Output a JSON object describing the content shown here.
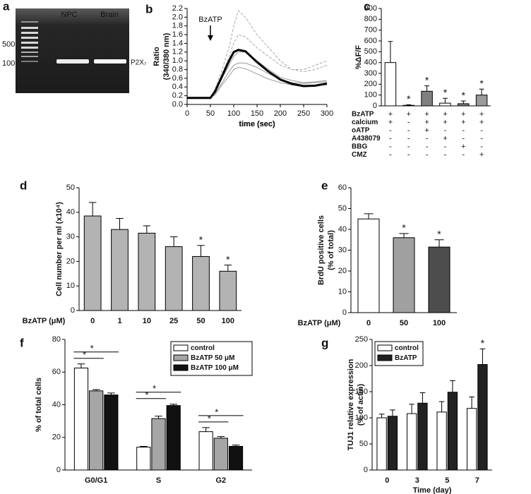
{
  "gel": {
    "panel": "a",
    "lanes": [
      "NPC",
      "Brain"
    ],
    "markers": [
      "500",
      "100"
    ],
    "band": "P2X₇"
  },
  "chart_data": [
    {
      "type": "line",
      "panel": "b",
      "ylabel": [
        "Ratio",
        "(340/380 nm)"
      ],
      "xlabel": "time (sec)",
      "x": [
        0,
        25,
        50,
        60,
        75,
        90,
        100,
        110,
        125,
        150,
        175,
        200,
        225,
        250,
        275,
        300
      ],
      "xlim": [
        0,
        300
      ],
      "xticks": [
        0,
        50,
        100,
        150,
        200,
        250,
        300
      ],
      "ylim": [
        0,
        2.2
      ],
      "yticks": [
        {
          "value": 0,
          "label": "0.0"
        },
        0.2,
        0.4,
        0.6,
        0.8,
        {
          "value": 1,
          "label": "1.0"
        },
        1.2,
        1.4,
        1.6,
        1.8,
        {
          "value": 2,
          "label": "2.0"
        },
        2.2
      ],
      "annotation": {
        "text": "BzATP",
        "x": 50
      },
      "series": [
        {
          "color": "#aaaaaa",
          "width": 1,
          "dash": true,
          "values": [
            0.15,
            0.15,
            0.15,
            0.35,
            0.8,
            1.3,
            1.8,
            2.15,
            2.0,
            1.6,
            1.3,
            1.0,
            0.8,
            0.75,
            0.8,
            0.9
          ]
        },
        {
          "color": "#aaaaaa",
          "width": 1,
          "dash": true,
          "values": [
            0.15,
            0.15,
            0.15,
            0.3,
            0.7,
            1.1,
            1.4,
            1.6,
            1.55,
            1.3,
            1.1,
            0.9,
            0.8,
            0.8,
            0.9,
            1.0
          ]
        },
        {
          "color": "#999999",
          "width": 1,
          "dash": false,
          "values": [
            0.15,
            0.15,
            0.15,
            0.28,
            0.6,
            0.9,
            1.1,
            1.2,
            1.2,
            1.0,
            0.8,
            0.62,
            0.55,
            0.5,
            0.52,
            0.55
          ]
        },
        {
          "color": "#999999",
          "width": 1,
          "dash": false,
          "values": [
            0.15,
            0.15,
            0.15,
            0.25,
            0.5,
            0.75,
            0.9,
            0.95,
            0.95,
            0.85,
            0.7,
            0.58,
            0.5,
            0.48,
            0.5,
            0.52
          ]
        },
        {
          "color": "#999999",
          "width": 1,
          "dash": false,
          "values": [
            0.15,
            0.15,
            0.15,
            0.22,
            0.45,
            0.65,
            0.8,
            0.85,
            0.82,
            0.7,
            0.58,
            0.5,
            0.45,
            0.42,
            0.43,
            0.45
          ]
        },
        {
          "color": "#000000",
          "width": 3,
          "dash": false,
          "values": [
            0.15,
            0.15,
            0.15,
            0.3,
            0.65,
            1.0,
            1.2,
            1.25,
            1.22,
            0.97,
            0.75,
            0.57,
            0.47,
            0.42,
            0.43,
            0.48
          ]
        }
      ]
    },
    {
      "type": "bar",
      "panel": "c",
      "ylabel": [
        "%ΔF/F"
      ],
      "ylim": [
        0,
        900
      ],
      "yticks": [
        0,
        100,
        200,
        300,
        400,
        500,
        600,
        700,
        800,
        900
      ],
      "values": [
        400,
        5,
        135,
        25,
        20,
        100
      ],
      "errors": [
        195,
        5,
        50,
        45,
        25,
        55
      ],
      "colors": [
        "#ffffff",
        "#ffffff",
        "#808080",
        "#ffffff",
        "#808080",
        "#9a9a9a"
      ],
      "stars": [
        null,
        "*",
        "*",
        "*",
        "*",
        "*"
      ],
      "conditions": [
        {
          "label": "BzATP",
          "signs": [
            "+",
            "+",
            "+",
            "+",
            "+",
            "+"
          ]
        },
        {
          "label": "calcium",
          "signs": [
            "+",
            "-",
            "+",
            "+",
            "+",
            "+"
          ]
        },
        {
          "label": "oATP",
          "signs": [
            "-",
            "-",
            "+",
            "-",
            "-",
            "-"
          ]
        },
        {
          "label": "A438079",
          "signs": [
            "-",
            "-",
            "-",
            "+",
            "-",
            "-"
          ]
        },
        {
          "label": "BBG",
          "signs": [
            "-",
            "-",
            "-",
            "-",
            "+",
            "-"
          ]
        },
        {
          "label": "CMZ",
          "signs": [
            "-",
            "-",
            "-",
            "-",
            "-",
            "+"
          ]
        }
      ]
    },
    {
      "type": "bar",
      "panel": "d",
      "ylabel": [
        "Cell number per ml (x10⁴)"
      ],
      "xlabel": "BzATP (μM)",
      "categories": [
        "0",
        "1",
        "10",
        "25",
        "50",
        "100"
      ],
      "ylim": [
        0,
        50
      ],
      "yticks": [
        0,
        10,
        20,
        30,
        40,
        50
      ],
      "values": [
        38.5,
        33,
        31.5,
        26,
        22,
        16
      ],
      "errors": [
        5.5,
        4.5,
        3,
        4,
        4.5,
        2.5
      ],
      "color": "#b3b3b3",
      "stars": [
        null,
        null,
        null,
        null,
        "*",
        "*"
      ]
    },
    {
      "type": "bar",
      "panel": "e",
      "ylabel": [
        "BrdU positive cells",
        "(% of total)"
      ],
      "xlabel": "BzATP (μM)",
      "categories": [
        "0",
        "50",
        "100"
      ],
      "ylim": [
        0,
        60
      ],
      "yticks": [
        0,
        10,
        20,
        30,
        40,
        50,
        60
      ],
      "values": [
        45,
        36,
        31.5
      ],
      "errors": [
        2.5,
        2,
        3.5
      ],
      "colors": [
        "#ffffff",
        "#a0a0a0",
        "#4d4d4d"
      ],
      "stars": [
        null,
        "*",
        "*"
      ]
    },
    {
      "type": "bar",
      "panel": "f",
      "ylabel": [
        "% of total cells"
      ],
      "categories": [
        "G0/G1",
        "S",
        "G2"
      ],
      "ylim": [
        0,
        80
      ],
      "yticks": [
        0,
        20,
        40,
        60,
        80
      ],
      "legend": "upper right",
      "series": [
        {
          "name": "control",
          "color": "#ffffff",
          "values": [
            62.5,
            14,
            23.5
          ],
          "errors": [
            2.5,
            0.5,
            2.5
          ]
        },
        {
          "name": "BzATP 50 μM",
          "color": "#a6a6a6",
          "values": [
            48.5,
            31.5,
            19.5
          ],
          "errors": [
            0.8,
            1.5,
            1
          ]
        },
        {
          "name": "BzATP 100 μM",
          "color": "#111111",
          "values": [
            46,
            39.5,
            14.5
          ],
          "errors": [
            1.2,
            0.8,
            0.8
          ]
        }
      ],
      "significance": [
        {
          "category": 0,
          "series": [
            0,
            1
          ],
          "label": "*"
        },
        {
          "category": 0,
          "series": [
            0,
            2
          ],
          "label": "*"
        },
        {
          "category": 1,
          "series": [
            0,
            1
          ],
          "label": "*"
        },
        {
          "category": 1,
          "series": [
            0,
            2
          ],
          "label": "*"
        },
        {
          "category": 2,
          "series": [
            0,
            1
          ],
          "label": "*"
        },
        {
          "category": 2,
          "series": [
            0,
            2
          ],
          "label": "*"
        }
      ]
    },
    {
      "type": "bar",
      "panel": "g",
      "ylabel": [
        "TUJ1 relative expression",
        "(% of actin)"
      ],
      "xlabel": "Time (day)",
      "categories": [
        "0",
        "3",
        "5",
        "7"
      ],
      "ylim": [
        0,
        250
      ],
      "yticks": [
        0,
        50,
        100,
        150,
        200,
        250
      ],
      "legend": "upper left",
      "series": [
        {
          "name": "control",
          "color": "#ffffff",
          "values": [
            100,
            108,
            111,
            118
          ],
          "errors": [
            7,
            18,
            20,
            22
          ]
        },
        {
          "name": "BzATP",
          "color": "#222222",
          "values": [
            103,
            128,
            149,
            202
          ],
          "errors": [
            12,
            20,
            22,
            30
          ],
          "stars": [
            null,
            null,
            null,
            "*"
          ]
        }
      ]
    }
  ]
}
